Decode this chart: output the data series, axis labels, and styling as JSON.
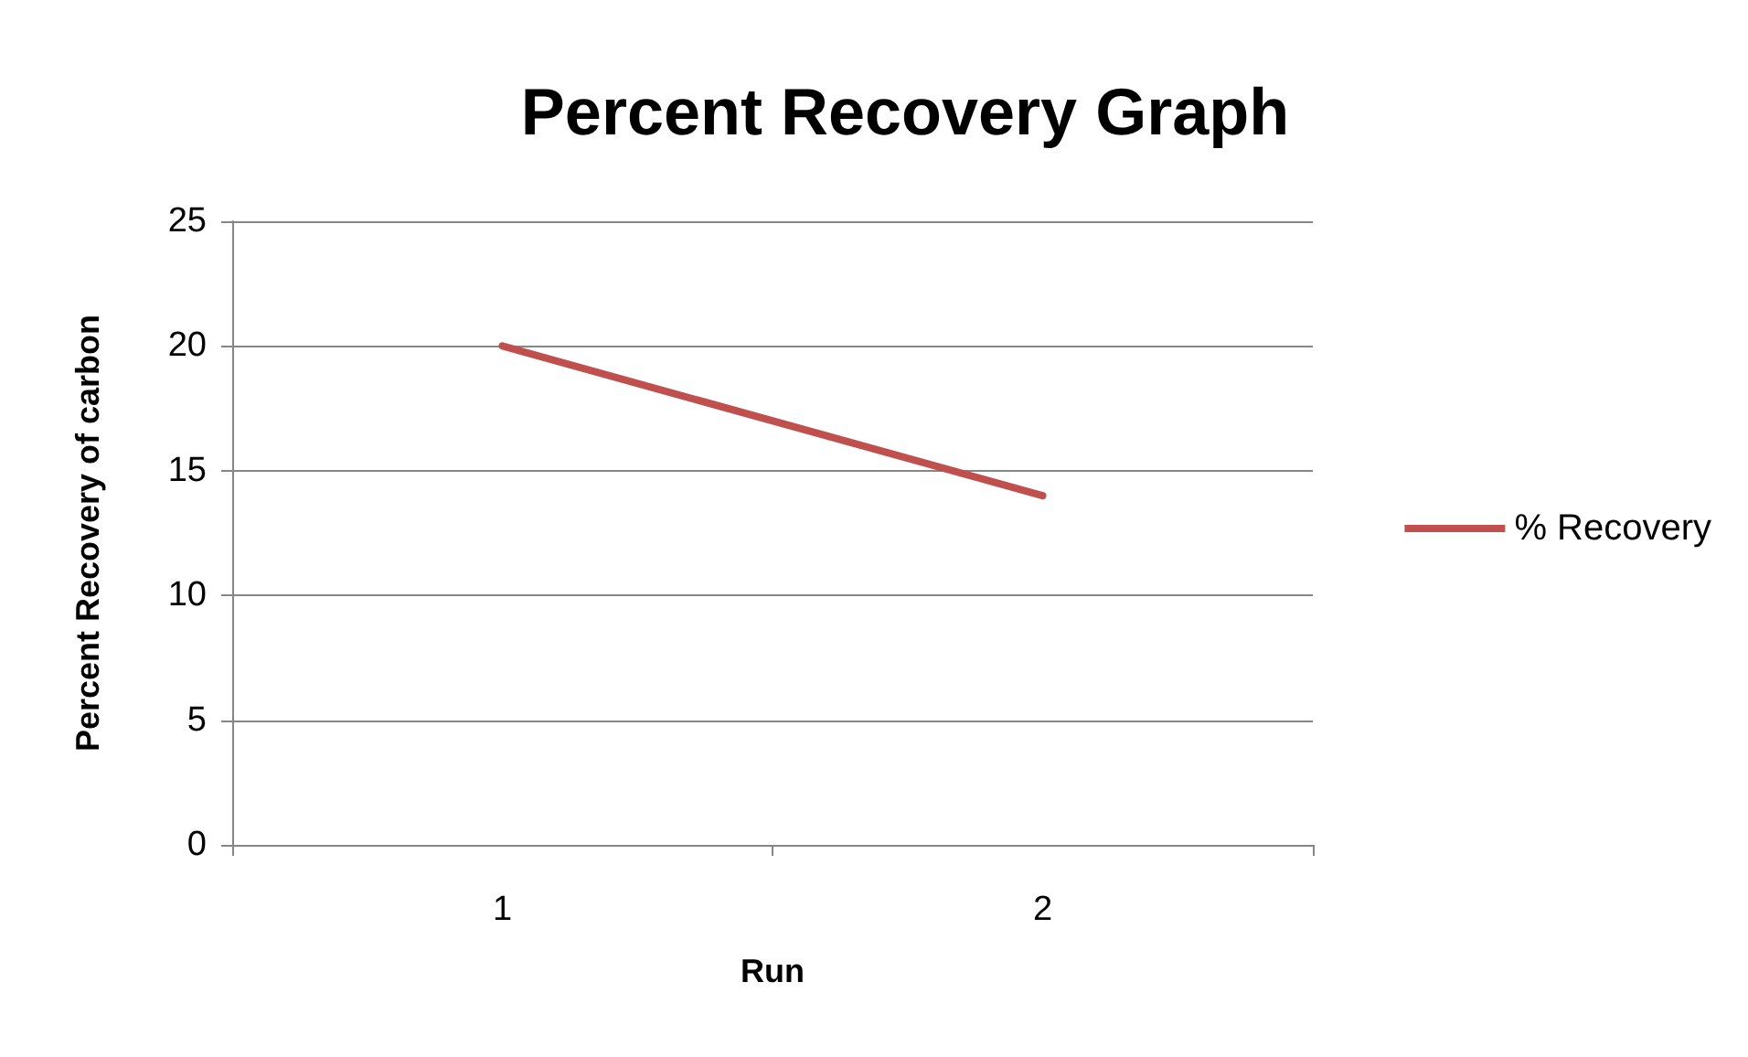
{
  "chart_data": {
    "type": "line",
    "title": "Percent Recovery Graph",
    "xlabel": "Run",
    "ylabel": "Percent Recovery of carbon",
    "categories": [
      "1",
      "2"
    ],
    "series": [
      {
        "name": "% Recovery",
        "color": "#c0504d",
        "values": [
          20,
          14
        ]
      }
    ],
    "ylim": [
      0,
      25
    ],
    "yticks": [
      0,
      5,
      10,
      15,
      20,
      25
    ],
    "grid": "y",
    "legend": "right",
    "marker": "none",
    "line_style": "solid"
  }
}
